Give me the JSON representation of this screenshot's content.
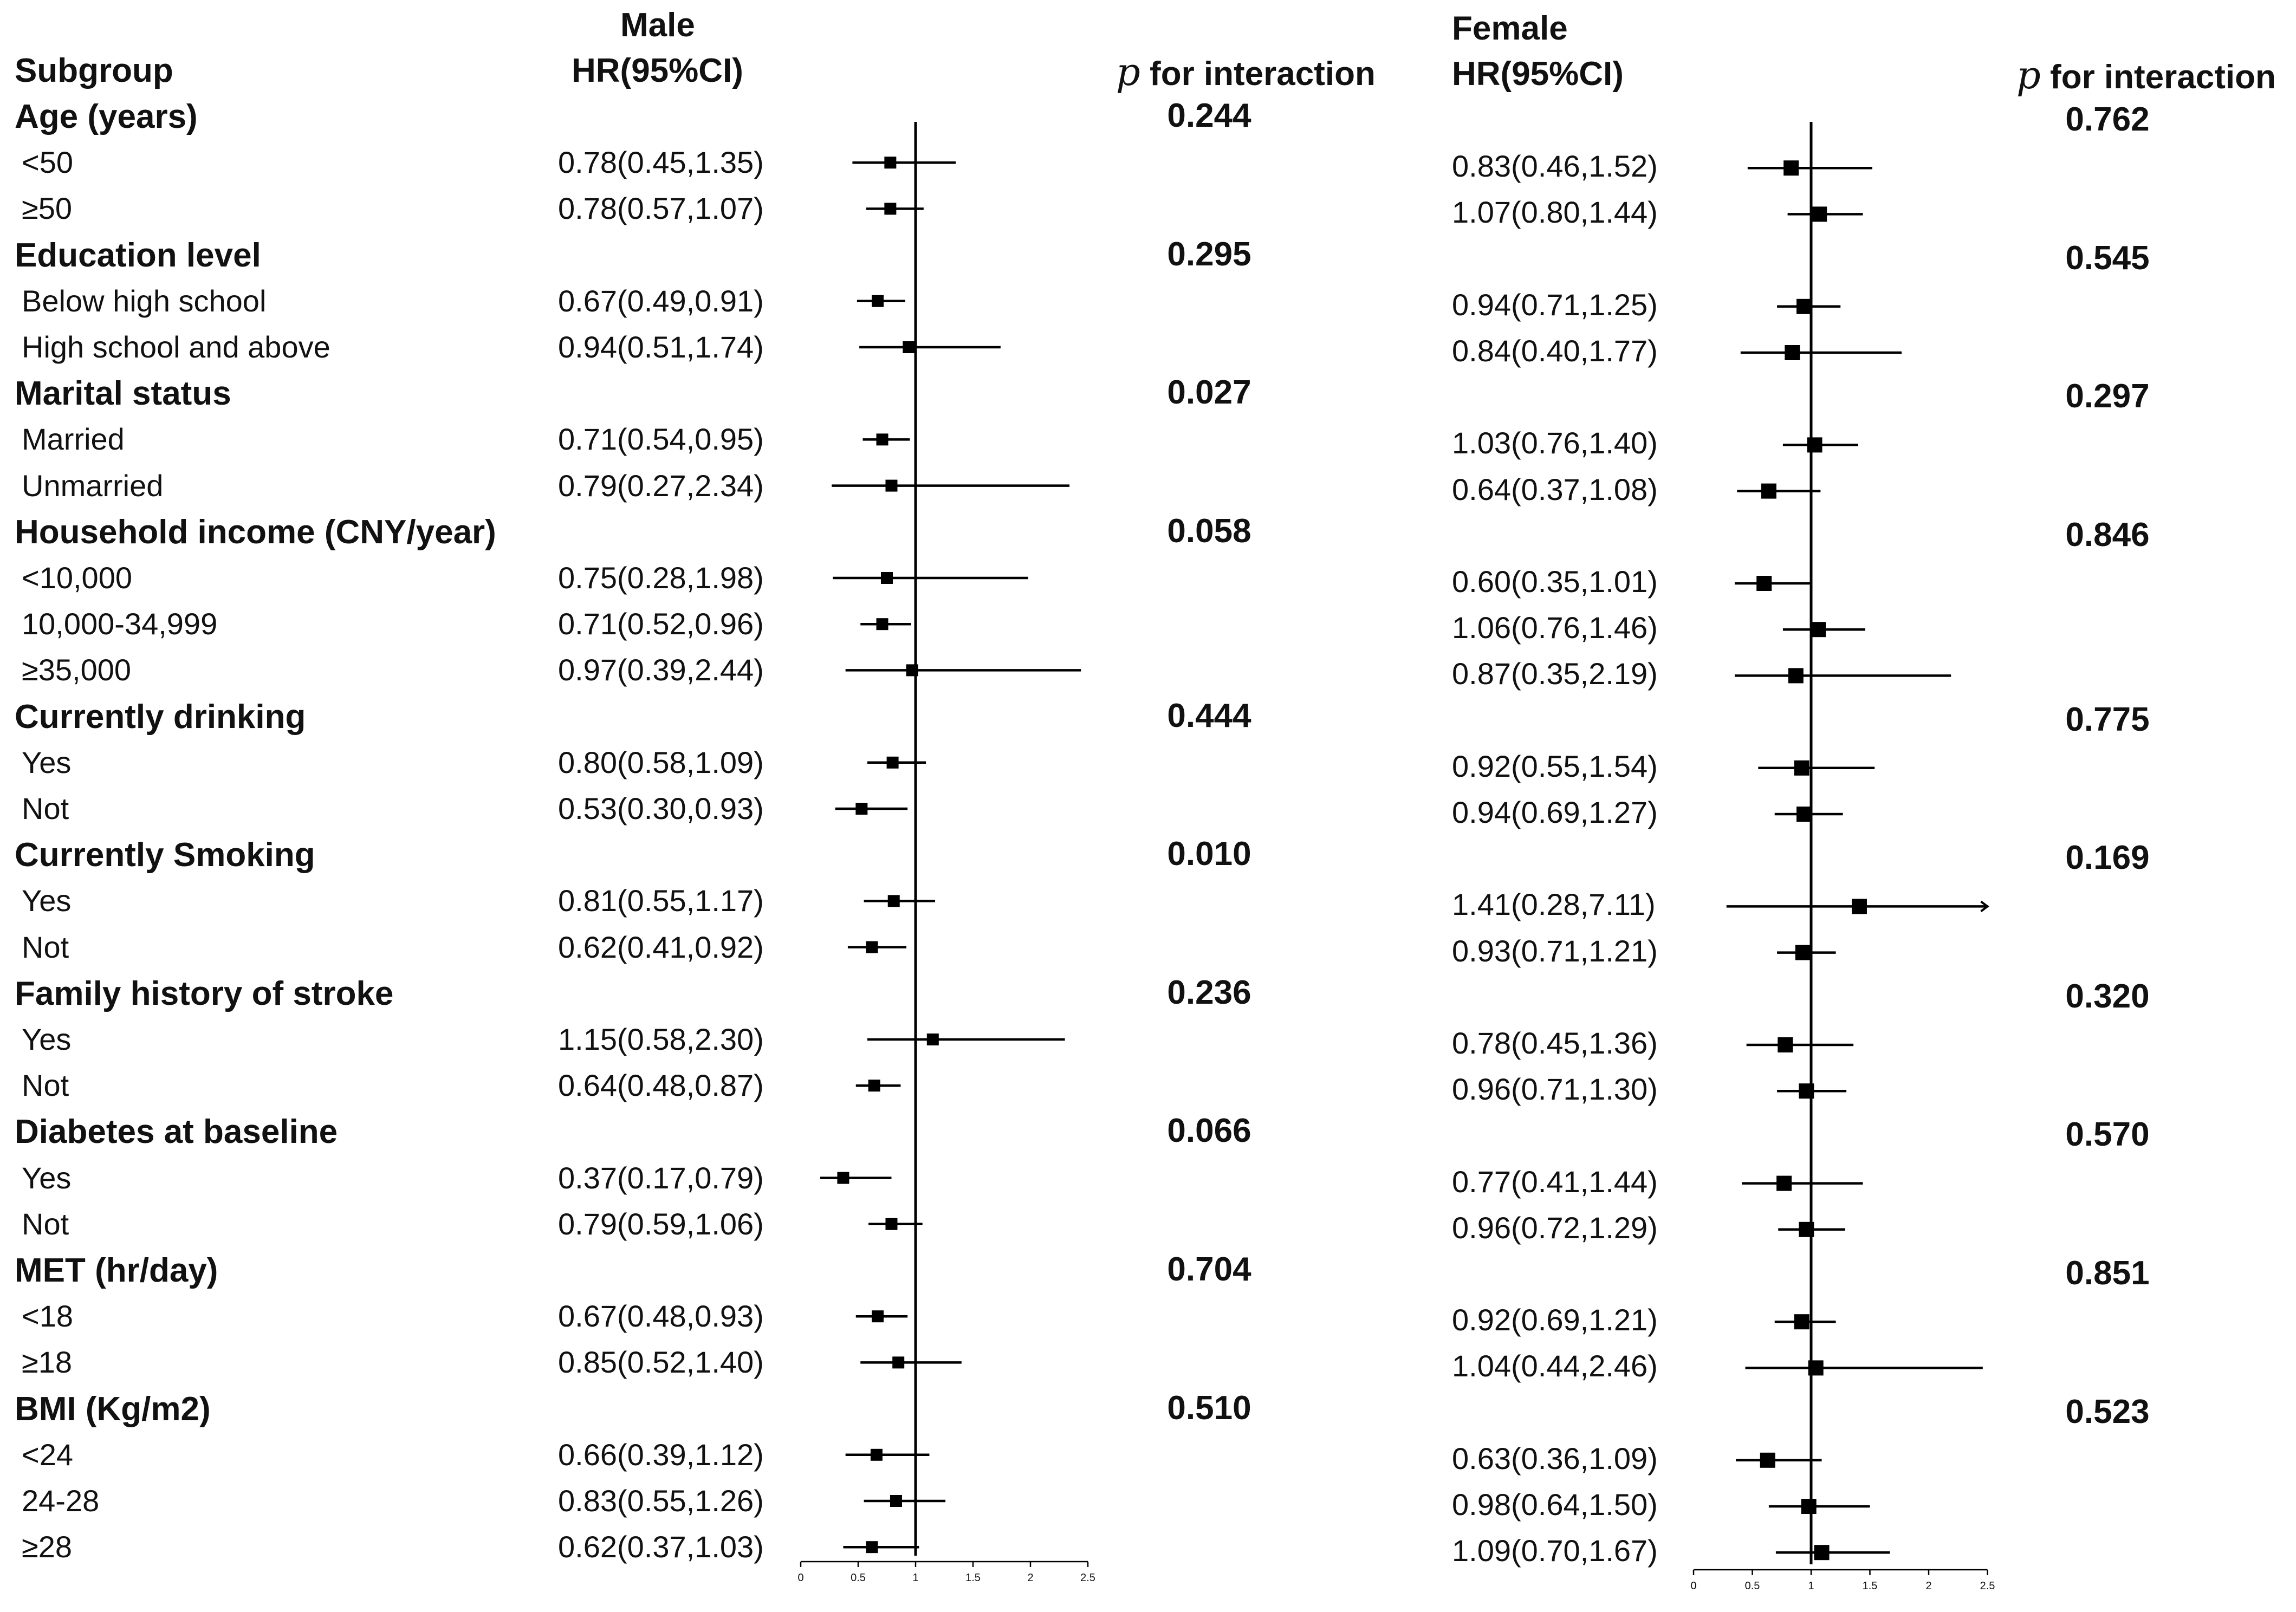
{
  "headers": {
    "subgroup": "Subgroup",
    "male_title": "Male",
    "male_hr": "HR(95%CI)",
    "female_title": "Female",
    "female_hr": "HR(95%CI)",
    "p_symbol": "p",
    "p_text": "for interaction"
  },
  "chart_data": {
    "type": "forest",
    "reference_line": 1,
    "axis_ticks": [
      0,
      0.5,
      1,
      1.5,
      2,
      2.5
    ],
    "axis_tick_labels": [
      "0",
      "0.5",
      "1",
      "1.5",
      "2",
      "2.5"
    ],
    "xlim": [
      0,
      2.5
    ],
    "panels": [
      "Male",
      "Female"
    ],
    "rows": [
      {
        "kind": "group",
        "label": "Age (years)",
        "p_male": "0.244",
        "p_female": "0.762"
      },
      {
        "kind": "sub",
        "label": "<50",
        "male": {
          "text": "0.78(0.45,1.35)",
          "hr": 0.78,
          "lo": 0.45,
          "hi": 1.35
        },
        "female": {
          "text": "0.83(0.46,1.52)",
          "hr": 0.83,
          "lo": 0.46,
          "hi": 1.52
        }
      },
      {
        "kind": "sub",
        "label": "≥50",
        "male": {
          "text": "0.78(0.57,1.07)",
          "hr": 0.78,
          "lo": 0.57,
          "hi": 1.07
        },
        "female": {
          "text": "1.07(0.80,1.44)",
          "hr": 1.07,
          "lo": 0.8,
          "hi": 1.44
        }
      },
      {
        "kind": "group",
        "label": "Education level",
        "p_male": "0.295",
        "p_female": "0.545"
      },
      {
        "kind": "sub",
        "label": "Below high school",
        "male": {
          "text": "0.67(0.49,0.91)",
          "hr": 0.67,
          "lo": 0.49,
          "hi": 0.91
        },
        "female": {
          "text": "0.94(0.71,1.25)",
          "hr": 0.94,
          "lo": 0.71,
          "hi": 1.25
        }
      },
      {
        "kind": "sub",
        "label": "High school and above",
        "male": {
          "text": "0.94(0.51,1.74)",
          "hr": 0.94,
          "lo": 0.51,
          "hi": 1.74
        },
        "female": {
          "text": "0.84(0.40,1.77)",
          "hr": 0.84,
          "lo": 0.4,
          "hi": 1.77
        }
      },
      {
        "kind": "group",
        "label": "Marital status",
        "p_male": "0.027",
        "p_female": "0.297"
      },
      {
        "kind": "sub",
        "label": "Married",
        "male": {
          "text": "0.71(0.54,0.95)",
          "hr": 0.71,
          "lo": 0.54,
          "hi": 0.95
        },
        "female": {
          "text": "1.03(0.76,1.40)",
          "hr": 1.03,
          "lo": 0.76,
          "hi": 1.4
        }
      },
      {
        "kind": "sub",
        "label": "Unmarried",
        "male": {
          "text": "0.79(0.27,2.34)",
          "hr": 0.79,
          "lo": 0.27,
          "hi": 2.34
        },
        "female": {
          "text": "0.64(0.37,1.08)",
          "hr": 0.64,
          "lo": 0.37,
          "hi": 1.08
        }
      },
      {
        "kind": "group",
        "label": "Household income (CNY/year)",
        "p_male": "0.058",
        "p_female": "0.846"
      },
      {
        "kind": "sub",
        "label": "<10,000",
        "male": {
          "text": "0.75(0.28,1.98)",
          "hr": 0.75,
          "lo": 0.28,
          "hi": 1.98
        },
        "female": {
          "text": "0.60(0.35,1.01)",
          "hr": 0.6,
          "lo": 0.35,
          "hi": 1.01
        }
      },
      {
        "kind": "sub",
        "label": "10,000-34,999",
        "male": {
          "text": "0.71(0.52,0.96)",
          "hr": 0.71,
          "lo": 0.52,
          "hi": 0.96
        },
        "female": {
          "text": "1.06(0.76,1.46)",
          "hr": 1.06,
          "lo": 0.76,
          "hi": 1.46
        }
      },
      {
        "kind": "sub",
        "label": "≥35,000",
        "male": {
          "text": "0.97(0.39,2.44)",
          "hr": 0.97,
          "lo": 0.39,
          "hi": 2.44
        },
        "female": {
          "text": "0.87(0.35,2.19)",
          "hr": 0.87,
          "lo": 0.35,
          "hi": 2.19
        }
      },
      {
        "kind": "group",
        "label": "Currently drinking",
        "p_male": "0.444",
        "p_female": "0.775"
      },
      {
        "kind": "sub",
        "label": "Yes",
        "male": {
          "text": "0.80(0.58,1.09)",
          "hr": 0.8,
          "lo": 0.58,
          "hi": 1.09
        },
        "female": {
          "text": "0.92(0.55,1.54)",
          "hr": 0.92,
          "lo": 0.55,
          "hi": 1.54
        }
      },
      {
        "kind": "sub",
        "label": "Not",
        "male": {
          "text": "0.53(0.30,0.93)",
          "hr": 0.53,
          "lo": 0.3,
          "hi": 0.93
        },
        "female": {
          "text": "0.94(0.69,1.27)",
          "hr": 0.94,
          "lo": 0.69,
          "hi": 1.27
        }
      },
      {
        "kind": "group",
        "label": "Currently Smoking",
        "p_male": "0.010",
        "p_female": "0.169"
      },
      {
        "kind": "sub",
        "label": "Yes",
        "male": {
          "text": "0.81(0.55,1.17)",
          "hr": 0.81,
          "lo": 0.55,
          "hi": 1.17
        },
        "female": {
          "text": "1.41(0.28,7.11)",
          "hr": 1.41,
          "lo": 0.28,
          "hi": 7.11
        }
      },
      {
        "kind": "sub",
        "label": "Not",
        "male": {
          "text": "0.62(0.41,0.92)",
          "hr": 0.62,
          "lo": 0.41,
          "hi": 0.92
        },
        "female": {
          "text": "0.93(0.71,1.21)",
          "hr": 0.93,
          "lo": 0.71,
          "hi": 1.21
        }
      },
      {
        "kind": "group",
        "label": "Family history of stroke",
        "p_male": "0.236",
        "p_female": "0.320"
      },
      {
        "kind": "sub",
        "label": "Yes",
        "male": {
          "text": "1.15(0.58,2.30)",
          "hr": 1.15,
          "lo": 0.58,
          "hi": 2.3
        },
        "female": {
          "text": "0.78(0.45,1.36)",
          "hr": 0.78,
          "lo": 0.45,
          "hi": 1.36
        }
      },
      {
        "kind": "sub",
        "label": "Not",
        "male": {
          "text": "0.64(0.48,0.87)",
          "hr": 0.64,
          "lo": 0.48,
          "hi": 0.87
        },
        "female": {
          "text": "0.96(0.71,1.30)",
          "hr": 0.96,
          "lo": 0.71,
          "hi": 1.3
        }
      },
      {
        "kind": "group",
        "label": "Diabetes at baseline",
        "p_male": "0.066",
        "p_female": "0.570"
      },
      {
        "kind": "sub",
        "label": "Yes",
        "male": {
          "text": "0.37(0.17,0.79)",
          "hr": 0.37,
          "lo": 0.17,
          "hi": 0.79
        },
        "female": {
          "text": "0.77(0.41,1.44)",
          "hr": 0.77,
          "lo": 0.41,
          "hi": 1.44
        }
      },
      {
        "kind": "sub",
        "label": "Not",
        "male": {
          "text": "0.79(0.59,1.06)",
          "hr": 0.79,
          "lo": 0.59,
          "hi": 1.06
        },
        "female": {
          "text": "0.96(0.72,1.29)",
          "hr": 0.96,
          "lo": 0.72,
          "hi": 1.29
        }
      },
      {
        "kind": "group",
        "label": "MET (hr/day)",
        "p_male": "0.704",
        "p_female": "0.851"
      },
      {
        "kind": "sub",
        "label": "<18",
        "male": {
          "text": "0.67(0.48,0.93)",
          "hr": 0.67,
          "lo": 0.48,
          "hi": 0.93
        },
        "female": {
          "text": "0.92(0.69,1.21)",
          "hr": 0.92,
          "lo": 0.69,
          "hi": 1.21
        }
      },
      {
        "kind": "sub",
        "label": "≥18",
        "male": {
          "text": "0.85(0.52,1.40)",
          "hr": 0.85,
          "lo": 0.52,
          "hi": 1.4
        },
        "female": {
          "text": "1.04(0.44,2.46)",
          "hr": 1.04,
          "lo": 0.44,
          "hi": 2.46
        }
      },
      {
        "kind": "group",
        "label": "BMI (Kg/m2)",
        "p_male": "0.510",
        "p_female": "0.523"
      },
      {
        "kind": "sub",
        "label": "<24",
        "male": {
          "text": "0.66(0.39,1.12)",
          "hr": 0.66,
          "lo": 0.39,
          "hi": 1.12
        },
        "female": {
          "text": "0.63(0.36,1.09)",
          "hr": 0.63,
          "lo": 0.36,
          "hi": 1.09
        }
      },
      {
        "kind": "sub",
        "label": "24-28",
        "male": {
          "text": "0.83(0.55,1.26)",
          "hr": 0.83,
          "lo": 0.55,
          "hi": 1.26
        },
        "female": {
          "text": "0.98(0.64,1.50)",
          "hr": 0.98,
          "lo": 0.64,
          "hi": 1.5
        }
      },
      {
        "kind": "sub",
        "label": "≥28",
        "male": {
          "text": "0.62(0.37,1.03)",
          "hr": 0.62,
          "lo": 0.37,
          "hi": 1.03
        },
        "female": {
          "text": "1.09(0.70,1.67)",
          "hr": 1.09,
          "lo": 0.7,
          "hi": 1.67
        }
      }
    ]
  }
}
